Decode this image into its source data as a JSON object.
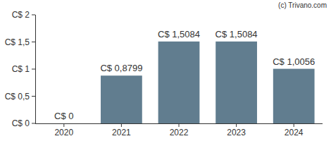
{
  "chart_data": {
    "type": "bar",
    "annotations": [
      "(c) Trivano.com"
    ],
    "categories": [
      "2020",
      "2021",
      "2022",
      "2023",
      "2024"
    ],
    "values": [
      0,
      0.8799,
      1.5084,
      1.5084,
      1.0056
    ],
    "value_labels": [
      "C$ 0",
      "C$ 0,8799",
      "C$ 1,5084",
      "C$ 1,5084",
      "C$ 1,0056"
    ],
    "color": "#617d8f",
    "ylim": [
      0,
      2
    ],
    "yticks": [
      {
        "value": 0,
        "label": "C$ 0"
      },
      {
        "value": 0.5,
        "label": "C$ 0,5"
      },
      {
        "value": 1,
        "label": "C$ 1"
      },
      {
        "value": 1.5,
        "label": "C$ 1,5"
      },
      {
        "value": 2,
        "label": "C$ 2"
      }
    ],
    "grid": false,
    "data_labels": true
  }
}
